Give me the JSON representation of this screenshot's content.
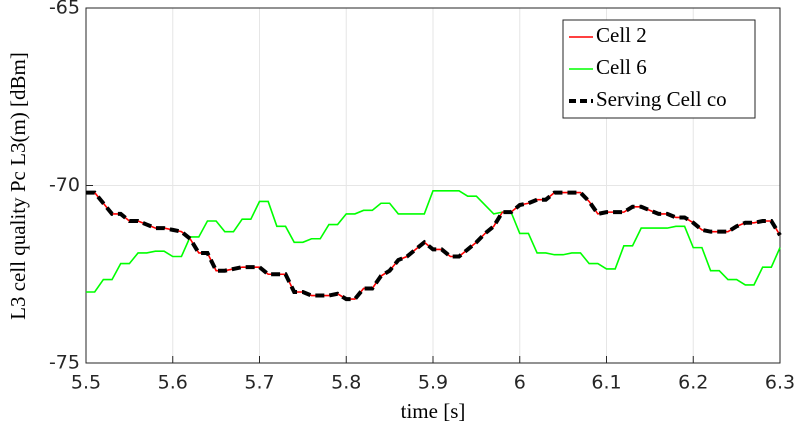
{
  "chart_data": {
    "type": "line",
    "xlabel": "time [s]",
    "ylabel": "L3 cell quality Pc L3(m) [dBm]",
    "x": [
      5.5,
      5.51,
      5.52,
      5.53,
      5.54,
      5.55,
      5.56,
      5.57,
      5.58,
      5.59,
      5.6,
      5.61,
      5.62,
      5.63,
      5.64,
      5.65,
      5.66,
      5.67,
      5.68,
      5.69,
      5.7,
      5.71,
      5.72,
      5.73,
      5.74,
      5.75,
      5.76,
      5.77,
      5.78,
      5.79,
      5.8,
      5.81,
      5.82,
      5.83,
      5.84,
      5.85,
      5.86,
      5.87,
      5.88,
      5.89,
      5.9,
      5.91,
      5.92,
      5.93,
      5.94,
      5.95,
      5.96,
      5.97,
      5.98,
      5.99,
      6.0,
      6.01,
      6.02,
      6.03,
      6.04,
      6.05,
      6.06,
      6.07,
      6.08,
      6.09,
      6.1,
      6.11,
      6.12,
      6.13,
      6.14,
      6.15,
      6.16,
      6.17,
      6.18,
      6.19,
      6.2,
      6.21,
      6.22,
      6.23,
      6.24,
      6.25,
      6.26,
      6.27,
      6.28,
      6.29,
      6.3
    ],
    "series": [
      {
        "name": "Cell 6",
        "color": "#00ff00",
        "values": [
          -73.0,
          -73.0,
          -72.65,
          -72.65,
          -72.2,
          -72.2,
          -71.9,
          -71.9,
          -71.85,
          -71.85,
          -72.0,
          -72.0,
          -71.45,
          -71.45,
          -71.0,
          -71.0,
          -71.3,
          -71.3,
          -70.95,
          -70.95,
          -70.45,
          -70.45,
          -71.15,
          -71.15,
          -71.6,
          -71.6,
          -71.5,
          -71.5,
          -71.1,
          -71.1,
          -70.8,
          -70.8,
          -70.7,
          -70.7,
          -70.5,
          -70.5,
          -70.8,
          -70.8,
          -70.8,
          -70.8,
          -70.15,
          -70.15,
          -70.15,
          -70.15,
          -70.3,
          -70.3,
          -70.55,
          -70.8,
          -70.75,
          -70.75,
          -71.35,
          -71.35,
          -71.9,
          -71.9,
          -71.95,
          -71.95,
          -71.9,
          -71.9,
          -72.2,
          -72.2,
          -72.35,
          -72.35,
          -71.7,
          -71.7,
          -71.2,
          -71.2,
          -71.2,
          -71.2,
          -71.15,
          -71.15,
          -71.75,
          -71.75,
          -72.4,
          -72.4,
          -72.65,
          -72.65,
          -72.8,
          -72.8,
          -72.3,
          -72.3,
          -71.75
        ]
      },
      {
        "name": "Cell 2",
        "color": "#ff0000",
        "values": [
          -70.2,
          -70.2,
          -70.5,
          -70.8,
          -70.8,
          -71.0,
          -71.0,
          -71.1,
          -71.2,
          -71.2,
          -71.25,
          -71.3,
          -71.5,
          -71.9,
          -71.9,
          -72.4,
          -72.4,
          -72.35,
          -72.3,
          -72.3,
          -72.3,
          -72.5,
          -72.5,
          -72.5,
          -73.0,
          -73.0,
          -73.1,
          -73.1,
          -73.1,
          -73.05,
          -73.2,
          -73.2,
          -72.9,
          -72.9,
          -72.55,
          -72.4,
          -72.1,
          -72.0,
          -71.8,
          -71.6,
          -71.8,
          -71.8,
          -72.0,
          -72.0,
          -71.8,
          -71.6,
          -71.35,
          -71.15,
          -70.75,
          -70.75,
          -70.55,
          -70.5,
          -70.4,
          -70.4,
          -70.2,
          -70.2,
          -70.2,
          -70.2,
          -70.45,
          -70.8,
          -70.75,
          -70.75,
          -70.75,
          -70.6,
          -70.6,
          -70.7,
          -70.8,
          -70.8,
          -70.9,
          -70.9,
          -71.05,
          -71.25,
          -71.3,
          -71.3,
          -71.3,
          -71.15,
          -71.05,
          -71.05,
          -71.0,
          -71.0,
          -71.4
        ]
      },
      {
        "name": "Serving Cell co",
        "color": "#000000",
        "dashed": true,
        "values": [
          -70.2,
          -70.2,
          -70.5,
          -70.8,
          -70.8,
          -71.0,
          -71.0,
          -71.1,
          -71.2,
          -71.2,
          -71.25,
          -71.3,
          -71.5,
          -71.9,
          -71.9,
          -72.4,
          -72.4,
          -72.35,
          -72.3,
          -72.3,
          -72.3,
          -72.5,
          -72.5,
          -72.5,
          -73.0,
          -73.0,
          -73.1,
          -73.1,
          -73.1,
          -73.05,
          -73.2,
          -73.2,
          -72.9,
          -72.9,
          -72.55,
          -72.4,
          -72.1,
          -72.0,
          -71.8,
          -71.6,
          -71.8,
          -71.8,
          -72.0,
          -72.0,
          -71.8,
          -71.6,
          -71.35,
          -71.15,
          -70.75,
          -70.75,
          -70.55,
          -70.5,
          -70.4,
          -70.4,
          -70.2,
          -70.2,
          -70.2,
          -70.2,
          -70.45,
          -70.8,
          -70.75,
          -70.75,
          -70.75,
          -70.6,
          -70.6,
          -70.7,
          -70.8,
          -70.8,
          -70.9,
          -70.9,
          -71.05,
          -71.25,
          -71.3,
          -71.3,
          -71.3,
          -71.15,
          -71.05,
          -71.05,
          -71.0,
          -71.0,
          -71.4
        ]
      }
    ],
    "xlim": [
      5.5,
      6.3
    ],
    "xticks": [
      5.5,
      5.6,
      5.7,
      5.8,
      5.9,
      6,
      6.1,
      6.2,
      6.3
    ],
    "ylim": [
      -75,
      -65
    ],
    "yticks": [
      -75,
      -70,
      -65
    ],
    "grid": true,
    "legend": "top-right"
  }
}
